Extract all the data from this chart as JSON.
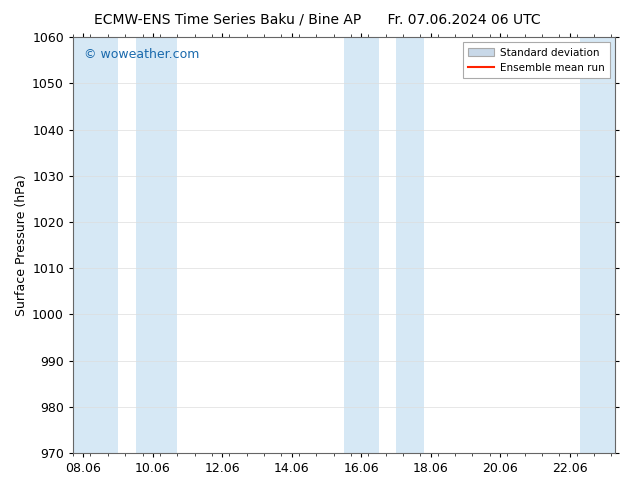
{
  "title_left": "ECMW-ENS Time Series Baku / Bine AP",
  "title_right": "Fr. 07.06.2024 06 UTC",
  "ylabel": "Surface Pressure (hPa)",
  "ylim": [
    970,
    1060
  ],
  "yticks": [
    970,
    980,
    990,
    1000,
    1010,
    1020,
    1030,
    1040,
    1050,
    1060
  ],
  "xtick_labels": [
    "08.06",
    "10.06",
    "12.06",
    "14.06",
    "16.06",
    "18.06",
    "20.06",
    "22.06"
  ],
  "x_dates": [
    0,
    2,
    4,
    6,
    8,
    10,
    12,
    14
  ],
  "x_min": -0.3,
  "x_max": 15.3,
  "shaded_bands": [
    {
      "x_start": -0.3,
      "x_end": 1.0,
      "color": "#d6e8f5"
    },
    {
      "x_start": 1.5,
      "x_end": 2.7,
      "color": "#d6e8f5"
    },
    {
      "x_start": 7.5,
      "x_end": 8.5,
      "color": "#d6e8f5"
    },
    {
      "x_start": 9.0,
      "x_end": 9.8,
      "color": "#d6e8f5"
    },
    {
      "x_start": 14.3,
      "x_end": 15.3,
      "color": "#d6e8f5"
    }
  ],
  "watermark_text": "© woweather.com",
  "watermark_color": "#1a6aad",
  "background_color": "#ffffff",
  "legend_sd_color": "#c8d8e8",
  "legend_sd_edge": "#aaaaaa",
  "legend_mean_color": "#ff2200",
  "title_fontsize": 10,
  "axis_label_fontsize": 9,
  "tick_fontsize": 9,
  "ylabel_fontsize": 9,
  "watermark_fontsize": 9
}
